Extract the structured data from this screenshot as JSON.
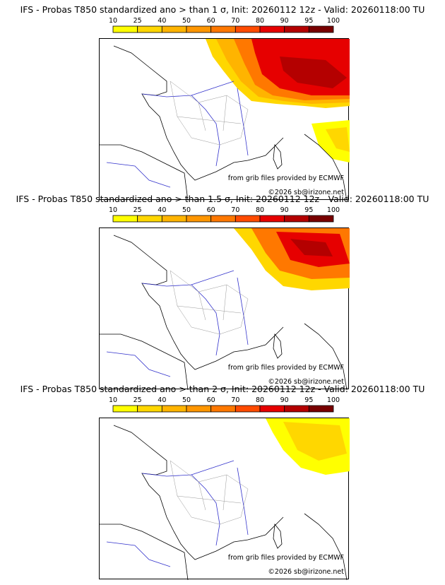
{
  "colorbar": {
    "ticks": [
      "10",
      "25",
      "40",
      "50",
      "60",
      "70",
      "80",
      "90",
      "95",
      "100"
    ],
    "colors": [
      "#ffff00",
      "#ffd700",
      "#ffb400",
      "#ff9600",
      "#ff7800",
      "#ff4b00",
      "#e60000",
      "#b40000",
      "#780000"
    ]
  },
  "colors": {
    "coast": "#000000",
    "rivers": "#3333cc",
    "borders": "#999999"
  },
  "panels": [
    {
      "title": "IFS - Probas T850  standardized ano > than 1 σ, Init: 20260112 12z - Valid: 20260118:00 TU",
      "credit_grib": "from grib files provided by ECMWF",
      "credit_site": "©2026 sb@irizone.net"
    },
    {
      "title": "IFS - Probas T850  standardized ano > than 1.5 σ, Init: 20260112 12z - Valid: 20260118:00 TU",
      "credit_grib": "from grib files provided by ECMWF",
      "credit_site": "©2026 sb@irizone.net"
    },
    {
      "title": "IFS - Probas T850  standardized ano > than 2 σ, Init: 20260112 12z - Valid: 20260118:00 TU",
      "credit_grib": "from grib files provided by ECMWF",
      "credit_site": "©2026 sb@irizone.net"
    }
  ]
}
